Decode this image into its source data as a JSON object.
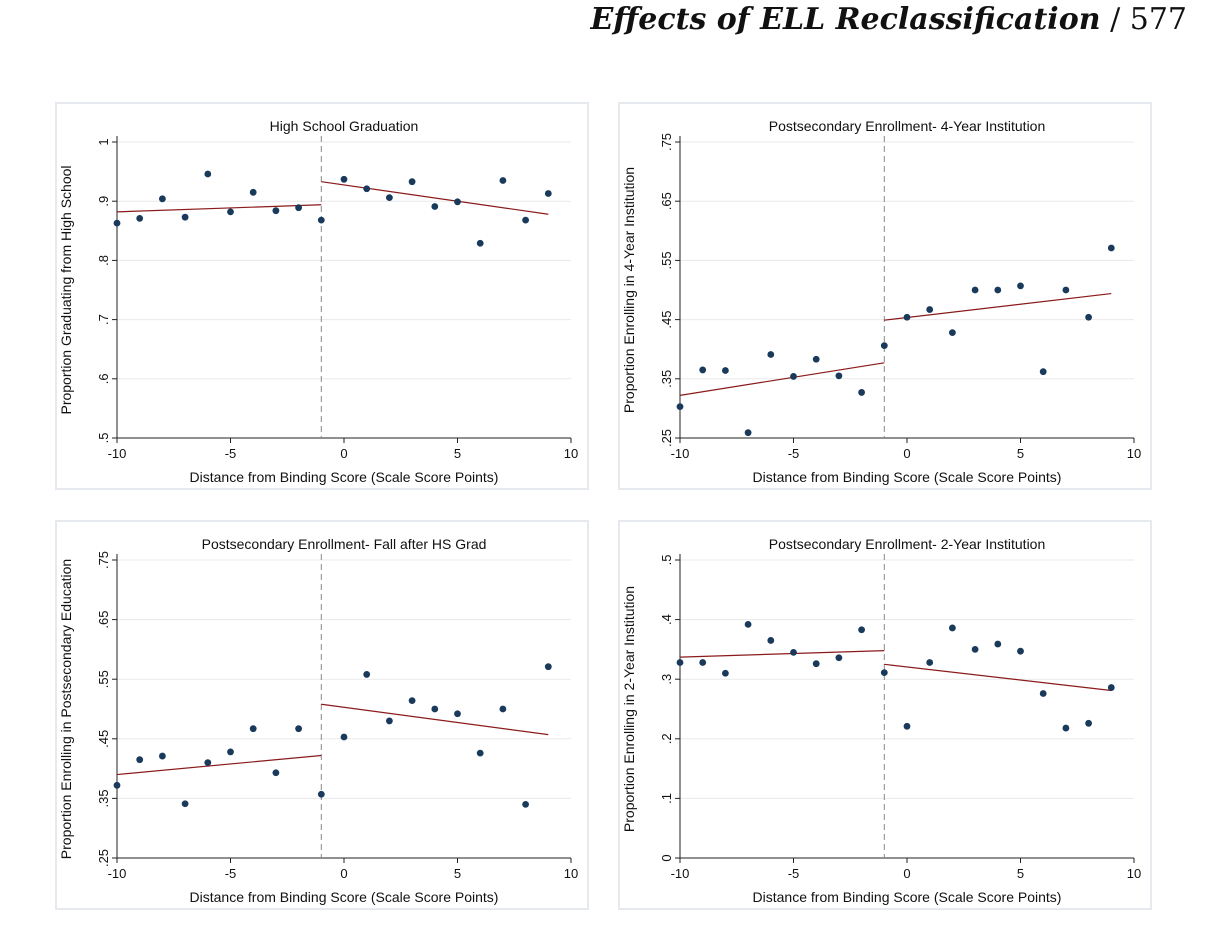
{
  "header": {
    "title": "Effects of ELL Reclassification",
    "separator": "/",
    "page_number": "577"
  },
  "chart_data": [
    {
      "type": "scatter",
      "title": "High School Graduation",
      "xlabel": "Distance from Binding Score (Scale Score Points)",
      "ylabel": "Proportion Graduating from High School",
      "xlim": [
        -10,
        10
      ],
      "ylim": [
        0.5,
        1
      ],
      "xticks": [
        -10,
        -5,
        0,
        5,
        10
      ],
      "xtick_labels": [
        "-10",
        "-5",
        "0",
        "5",
        "10"
      ],
      "yticks": [
        0.5,
        0.6,
        0.7,
        0.8,
        0.9,
        1
      ],
      "ytick_labels": [
        ".5",
        ".6",
        ".7",
        ".8",
        ".9",
        "1"
      ],
      "cutoff": -1,
      "grid": true,
      "colors": {
        "points": "#1a3a5c",
        "fit": "#8b1a1a",
        "cutoff": "#888888"
      },
      "points": {
        "x": [
          -10,
          -9,
          -8,
          -7,
          -6,
          -5,
          -4,
          -3,
          -2,
          -1,
          0,
          1,
          2,
          3,
          4,
          5,
          6,
          7,
          8,
          9
        ],
        "y": [
          0.863,
          0.871,
          0.904,
          0.873,
          0.946,
          0.882,
          0.915,
          0.884,
          0.889,
          0.868,
          0.937,
          0.921,
          0.906,
          0.933,
          0.891,
          0.899,
          0.829,
          0.935,
          0.868,
          0.913
        ]
      },
      "fit_lines": [
        {
          "x": [
            -10,
            -1
          ],
          "y": [
            0.882,
            0.894
          ]
        },
        {
          "x": [
            -1,
            9
          ],
          "y": [
            0.933,
            0.878
          ]
        }
      ]
    },
    {
      "type": "scatter",
      "title": "Postsecondary Enrollment- 4-Year Institution",
      "xlabel": "Distance from Binding Score (Scale Score Points)",
      "ylabel": "Proportion Enrolling in 4-Year Institution",
      "xlim": [
        -10,
        10
      ],
      "ylim": [
        0.25,
        0.75
      ],
      "xticks": [
        -10,
        -5,
        0,
        5,
        10
      ],
      "xtick_labels": [
        "-10",
        "-5",
        "0",
        "5",
        "10"
      ],
      "yticks": [
        0.25,
        0.35,
        0.45,
        0.55,
        0.65,
        0.75
      ],
      "ytick_labels": [
        ".25",
        ".35",
        ".45",
        ".55",
        ".65",
        ".75"
      ],
      "cutoff": -1,
      "grid": true,
      "colors": {
        "points": "#1a3a5c",
        "fit": "#8b1a1a",
        "cutoff": "#888888"
      },
      "points": {
        "x": [
          -10,
          -9,
          -8,
          -7,
          -6,
          -5,
          -4,
          -3,
          -2,
          -1,
          0,
          1,
          2,
          3,
          4,
          5,
          6,
          7,
          8,
          9
        ],
        "y": [
          0.303,
          0.365,
          0.364,
          0.259,
          0.391,
          0.354,
          0.383,
          0.355,
          0.327,
          0.406,
          0.454,
          0.467,
          0.428,
          0.5,
          0.5,
          0.507,
          0.362,
          0.5,
          0.454,
          0.571
        ]
      },
      "fit_lines": [
        {
          "x": [
            -10,
            -1
          ],
          "y": [
            0.322,
            0.377
          ]
        },
        {
          "x": [
            -1,
            9
          ],
          "y": [
            0.449,
            0.494
          ]
        }
      ]
    },
    {
      "type": "scatter",
      "title": "Postsecondary Enrollment- Fall after HS Grad",
      "xlabel": "Distance from Binding Score (Scale Score Points)",
      "ylabel": "Proportion Enrolling in Postsecondary Education",
      "xlim": [
        -10,
        10
      ],
      "ylim": [
        0.25,
        0.75
      ],
      "xticks": [
        -10,
        -5,
        0,
        5,
        10
      ],
      "xtick_labels": [
        "-10",
        "-5",
        "0",
        "5",
        "10"
      ],
      "yticks": [
        0.25,
        0.35,
        0.45,
        0.55,
        0.65,
        0.75
      ],
      "ytick_labels": [
        ".25",
        ".35",
        ".45",
        ".55",
        ".65",
        ".75"
      ],
      "cutoff": -1,
      "grid": true,
      "colors": {
        "points": "#1a3a5c",
        "fit": "#8b1a1a",
        "cutoff": "#888888"
      },
      "points": {
        "x": [
          -10,
          -9,
          -8,
          -7,
          -6,
          -5,
          -4,
          -3,
          -2,
          -1,
          0,
          1,
          2,
          3,
          4,
          5,
          6,
          7,
          8,
          9
        ],
        "y": [
          0.372,
          0.415,
          0.421,
          0.341,
          0.41,
          0.428,
          0.467,
          0.393,
          0.467,
          0.357,
          0.453,
          0.558,
          0.48,
          0.514,
          0.5,
          0.492,
          0.426,
          0.5,
          0.34,
          0.571
        ]
      },
      "fit_lines": [
        {
          "x": [
            -10,
            -1
          ],
          "y": [
            0.39,
            0.422
          ]
        },
        {
          "x": [
            -1,
            9
          ],
          "y": [
            0.508,
            0.457
          ]
        }
      ]
    },
    {
      "type": "scatter",
      "title": "Postsecondary Enrollment- 2-Year Institution",
      "xlabel": "Distance from Binding Score (Scale Score Points)",
      "ylabel": "Proportion Enrolling in 2-Year Institution",
      "xlim": [
        -10,
        10
      ],
      "ylim": [
        0,
        0.5
      ],
      "xticks": [
        -10,
        -5,
        0,
        5,
        10
      ],
      "xtick_labels": [
        "-10",
        "-5",
        "0",
        "5",
        "10"
      ],
      "yticks": [
        0,
        0.1,
        0.2,
        0.3,
        0.4,
        0.5
      ],
      "ytick_labels": [
        "0",
        ".1",
        ".2",
        ".3",
        ".4",
        ".5"
      ],
      "cutoff": -1,
      "grid": true,
      "colors": {
        "points": "#1a3a5c",
        "fit": "#8b1a1a",
        "cutoff": "#888888"
      },
      "points": {
        "x": [
          -10,
          -9,
          -8,
          -7,
          -6,
          -5,
          -4,
          -3,
          -2,
          -1,
          0,
          1,
          2,
          3,
          4,
          5,
          6,
          7,
          8,
          9
        ],
        "y": [
          0.328,
          0.328,
          0.31,
          0.392,
          0.365,
          0.345,
          0.326,
          0.336,
          0.383,
          0.311,
          0.221,
          0.328,
          0.386,
          0.35,
          0.359,
          0.347,
          0.276,
          0.218,
          0.226,
          0.286
        ]
      },
      "fit_lines": [
        {
          "x": [
            -10,
            -1
          ],
          "y": [
            0.337,
            0.348
          ]
        },
        {
          "x": [
            -1,
            9
          ],
          "y": [
            0.325,
            0.281
          ]
        }
      ]
    }
  ]
}
